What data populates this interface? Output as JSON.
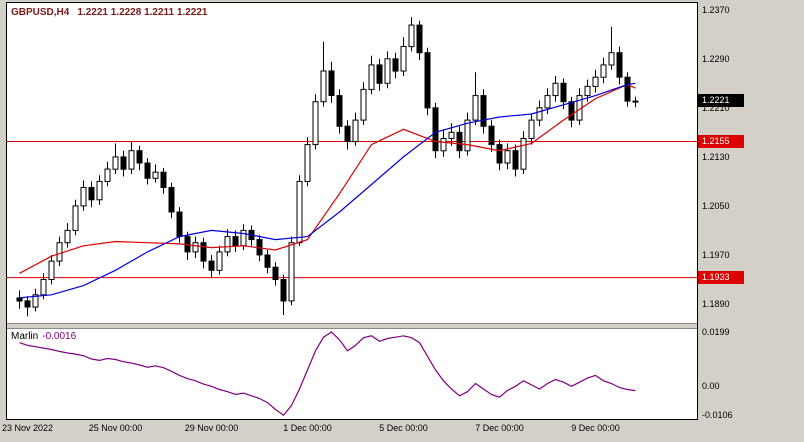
{
  "window": {
    "symbol": "GBPUSD,H4",
    "ohlc_line": "1.2221 1.2228 1.2211 1.2221"
  },
  "indicator": {
    "name": "Marlin",
    "value": "-0.0016"
  },
  "colors": {
    "bull": "#ffffff",
    "bear": "#000000",
    "outline": "#000000",
    "level": "#dd0000",
    "ma_fast": "#dd0000",
    "ma_slow": "#0000dd",
    "indicator_line": "#800080",
    "symbol_text": "#7a1a1a",
    "current_tag_bg": "#000000",
    "chart_bg": "#ffffff",
    "frame_bg": "#d4d0c8"
  },
  "price_axis": {
    "labels": [
      {
        "text": "1.2370",
        "value": 1.237
      },
      {
        "text": "1.2290",
        "value": 1.229
      },
      {
        "text": "1.2210",
        "value": 1.221
      },
      {
        "text": "1.2130",
        "value": 1.213
      },
      {
        "text": "1.2050",
        "value": 1.205
      },
      {
        "text": "1.1970",
        "value": 1.197
      },
      {
        "text": "1.1890",
        "value": 1.189
      }
    ],
    "current": {
      "text": "1.2221",
      "value": 1.2221
    },
    "levels": [
      {
        "text": "1.2155",
        "value": 1.2155
      },
      {
        "text": "1.1933",
        "value": 1.1933
      }
    ]
  },
  "indicator_axis": {
    "labels": [
      {
        "text": "0.0199",
        "value": 0.0199
      },
      {
        "text": "0.00",
        "value": 0.0
      },
      {
        "text": "-0.0106",
        "value": -0.0106
      }
    ]
  },
  "time_axis": {
    "labels": [
      {
        "text": "23 Nov 2022",
        "candle": 0
      },
      {
        "text": "25 Nov 00:00",
        "candle": 12
      },
      {
        "text": "29 Nov 00:00",
        "candle": 24
      },
      {
        "text": "1 Dec 00:00",
        "candle": 36
      },
      {
        "text": "5 Dec 00:00",
        "candle": 48
      },
      {
        "text": "7 Dec 00:00",
        "candle": 60
      },
      {
        "text": "9 Dec 00:00",
        "candle": 72
      }
    ]
  },
  "chart_data": {
    "type": "candlestick",
    "symbol": "GBPUSD",
    "timeframe": "H4",
    "title": "GBPUSD,H4 1.2221 1.2228 1.2211 1.2221",
    "levels": [
      1.2155,
      1.1933
    ],
    "candles": [
      [
        1.19,
        1.1912,
        1.1882,
        1.1895
      ],
      [
        1.1895,
        1.1903,
        1.187,
        1.1885
      ],
      [
        1.1885,
        1.1915,
        1.1878,
        1.1905
      ],
      [
        1.1905,
        1.194,
        1.1898,
        1.193
      ],
      [
        1.193,
        1.197,
        1.1922,
        1.196
      ],
      [
        1.196,
        1.2,
        1.1952,
        1.199
      ],
      [
        1.199,
        1.2022,
        1.1982,
        1.201
      ],
      [
        1.201,
        1.206,
        1.2002,
        1.205
      ],
      [
        1.205,
        1.2092,
        1.2042,
        1.208
      ],
      [
        1.208,
        1.209,
        1.2048,
        1.206
      ],
      [
        1.206,
        1.21,
        1.2052,
        1.209
      ],
      [
        1.209,
        1.2122,
        1.2082,
        1.211
      ],
      [
        1.211,
        1.2152,
        1.2102,
        1.213
      ],
      [
        1.213,
        1.214,
        1.2098,
        1.211
      ],
      [
        1.211,
        1.2155,
        1.2102,
        1.214
      ],
      [
        1.214,
        1.2148,
        1.2108,
        1.212
      ],
      [
        1.212,
        1.2128,
        1.2085,
        1.2095
      ],
      [
        1.2095,
        1.2118,
        1.2088,
        1.2105
      ],
      [
        1.2105,
        1.2112,
        1.207,
        1.208
      ],
      [
        1.208,
        1.2088,
        1.203,
        1.204
      ],
      [
        1.204,
        1.2048,
        1.199,
        1.2
      ],
      [
        1.2,
        1.2008,
        1.1962,
        1.1975
      ],
      [
        1.1975,
        1.2,
        1.1965,
        1.199
      ],
      [
        1.199,
        1.1998,
        1.1948,
        1.196
      ],
      [
        1.196,
        1.197,
        1.1932,
        1.1945
      ],
      [
        1.1945,
        1.1985,
        1.1938,
        1.1975
      ],
      [
        1.1975,
        1.2012,
        1.1968,
        1.2
      ],
      [
        1.2,
        1.201,
        1.1975,
        1.1985
      ],
      [
        1.1985,
        1.202,
        1.1978,
        1.201
      ],
      [
        1.201,
        1.2018,
        1.1985,
        1.1995
      ],
      [
        1.1995,
        1.2002,
        1.196,
        1.197
      ],
      [
        1.197,
        1.1978,
        1.194,
        1.195
      ],
      [
        1.195,
        1.1958,
        1.192,
        1.193
      ],
      [
        1.193,
        1.1938,
        1.1872,
        1.1895
      ],
      [
        1.1895,
        1.2,
        1.1888,
        1.199
      ],
      [
        1.199,
        1.21,
        1.1985,
        1.209
      ],
      [
        1.209,
        1.2162,
        1.2082,
        1.215
      ],
      [
        1.215,
        1.2232,
        1.2142,
        1.222
      ],
      [
        1.222,
        1.2318,
        1.2212,
        1.227
      ],
      [
        1.227,
        1.2285,
        1.2218,
        1.223
      ],
      [
        1.223,
        1.224,
        1.2168,
        1.218
      ],
      [
        1.218,
        1.219,
        1.2142,
        1.2155
      ],
      [
        1.2155,
        1.2202,
        1.2148,
        1.219
      ],
      [
        1.219,
        1.2252,
        1.2182,
        1.224
      ],
      [
        1.224,
        1.2295,
        1.2232,
        1.228
      ],
      [
        1.228,
        1.229,
        1.2238,
        1.225
      ],
      [
        1.225,
        1.2302,
        1.2242,
        1.229
      ],
      [
        1.229,
        1.23,
        1.2258,
        1.227
      ],
      [
        1.227,
        1.2325,
        1.2262,
        1.231
      ],
      [
        1.231,
        1.2358,
        1.2302,
        1.2345
      ],
      [
        1.2345,
        1.2352,
        1.2288,
        1.23
      ],
      [
        1.23,
        1.2308,
        1.2198,
        1.221
      ],
      [
        1.221,
        1.2218,
        1.2128,
        1.214
      ],
      [
        1.214,
        1.2175,
        1.213,
        1.216
      ],
      [
        1.216,
        1.2185,
        1.2148,
        1.217
      ],
      [
        1.217,
        1.218,
        1.2128,
        1.214
      ],
      [
        1.214,
        1.2202,
        1.2132,
        1.219
      ],
      [
        1.219,
        1.2268,
        1.2182,
        1.223
      ],
      [
        1.223,
        1.224,
        1.2168,
        1.218
      ],
      [
        1.218,
        1.219,
        1.2138,
        1.215
      ],
      [
        1.215,
        1.2158,
        1.2108,
        1.212
      ],
      [
        1.212,
        1.2152,
        1.211,
        1.214
      ],
      [
        1.214,
        1.215,
        1.2098,
        1.211
      ],
      [
        1.211,
        1.2172,
        1.2102,
        1.216
      ],
      [
        1.216,
        1.22,
        1.215,
        1.219
      ],
      [
        1.219,
        1.2222,
        1.218,
        1.221
      ],
      [
        1.221,
        1.2242,
        1.22,
        1.223
      ],
      [
        1.223,
        1.2262,
        1.222,
        1.225
      ],
      [
        1.225,
        1.2258,
        1.2208,
        1.222
      ],
      [
        1.222,
        1.2228,
        1.2178,
        1.219
      ],
      [
        1.219,
        1.2242,
        1.2182,
        1.223
      ],
      [
        1.223,
        1.2256,
        1.222,
        1.2245
      ],
      [
        1.2245,
        1.2272,
        1.2235,
        1.226
      ],
      [
        1.226,
        1.2292,
        1.225,
        1.228
      ],
      [
        1.228,
        1.2342,
        1.2272,
        1.23
      ],
      [
        1.23,
        1.231,
        1.2248,
        1.226
      ],
      [
        1.226,
        1.2268,
        1.2212,
        1.2221
      ],
      [
        1.2221,
        1.2228,
        1.2211,
        1.2221
      ]
    ],
    "moving_averages": [
      {
        "name": "ma-fast-red-line",
        "color": "#dd0000",
        "indices": [
          0,
          4,
          8,
          12,
          16,
          20,
          24,
          28,
          32,
          36,
          40,
          44,
          48,
          52,
          56,
          60,
          64,
          68,
          72,
          76,
          77
        ],
        "values": [
          1.194,
          1.1968,
          1.1985,
          1.1992,
          1.199,
          1.1988,
          1.1982,
          1.1985,
          1.1978,
          1.1995,
          1.207,
          1.215,
          1.2175,
          1.2155,
          1.215,
          1.214,
          1.2152,
          1.219,
          1.2225,
          1.2248,
          1.2242
        ]
      },
      {
        "name": "ma-slow-blue-line",
        "color": "#0000dd",
        "indices": [
          0,
          4,
          8,
          12,
          16,
          20,
          24,
          28,
          32,
          36,
          40,
          44,
          48,
          52,
          56,
          60,
          64,
          68,
          72,
          76,
          77
        ],
        "values": [
          1.19,
          1.1905,
          1.192,
          1.1945,
          1.1975,
          1.2,
          1.201,
          1.2005,
          1.1995,
          1.2,
          1.204,
          1.2085,
          1.213,
          1.217,
          1.2185,
          1.2195,
          1.22,
          1.2215,
          1.223,
          1.2248,
          1.225
        ]
      }
    ],
    "indicator": {
      "name": "Marlin",
      "color": "#800080",
      "last_value": -0.0016,
      "max": 0.0199,
      "min": -0.0106,
      "values": [
        0.016,
        0.015,
        0.0145,
        0.014,
        0.0135,
        0.0128,
        0.0122,
        0.0118,
        0.0112,
        0.01,
        0.0095,
        0.0102,
        0.0098,
        0.009,
        0.0085,
        0.0078,
        0.007,
        0.0075,
        0.0068,
        0.0055,
        0.004,
        0.0028,
        0.002,
        0.0008,
        0.0,
        -0.0012,
        -0.002,
        -0.003,
        -0.0025,
        -0.0035,
        -0.0045,
        -0.006,
        -0.0085,
        -0.0106,
        -0.007,
        -0.001,
        0.006,
        0.013,
        0.018,
        0.0199,
        0.017,
        0.013,
        0.015,
        0.0178,
        0.0185,
        0.0165,
        0.0175,
        0.018,
        0.0185,
        0.0178,
        0.016,
        0.011,
        0.006,
        0.002,
        -0.001,
        -0.0035,
        -0.002,
        0.001,
        -0.001,
        -0.003,
        -0.004,
        -0.0015,
        0.0,
        0.002,
        0.0005,
        -0.001,
        0.001,
        0.0025,
        0.0015,
        0.0,
        0.0015,
        0.003,
        0.004,
        0.002,
        0.001,
        -0.0005,
        -0.0012,
        -0.0016
      ]
    },
    "layout": {
      "price_top": 1.2381,
      "price_bottom": 1.1859,
      "ind_top": 0.021,
      "ind_bottom": -0.012,
      "x_start": 12.5,
      "x_step": 8,
      "body_width": 5,
      "grid": false,
      "legend": false
    }
  }
}
